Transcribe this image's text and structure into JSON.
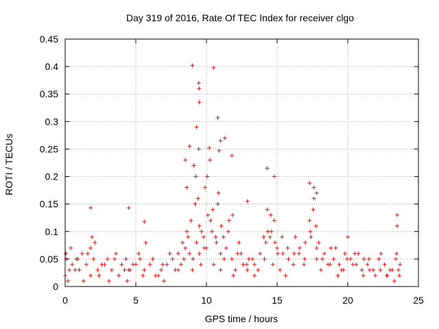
{
  "chart_data": {
    "type": "scatter",
    "title": "Day 319 of 2016, Rate Of TEC Index for receiver clgo",
    "xlabel": "GPS time / hours",
    "ylabel": "ROTI / TECUs",
    "xlim": [
      0,
      25
    ],
    "ylim": [
      0,
      0.45
    ],
    "xticks": [
      "0",
      "5",
      "10",
      "15",
      "20",
      "25"
    ],
    "yticks": [
      "0",
      "0.05",
      "0.1",
      "0.15",
      "0.2",
      "0.25",
      "0.3",
      "0.35",
      "0.4",
      "0.45"
    ],
    "grid": true,
    "marker": "+",
    "color": "#ff0000",
    "series": [
      {
        "name": "ROTI",
        "x": [
          0.0,
          0.1,
          0.3,
          0.5,
          0.8,
          1.0,
          1.2,
          1.5,
          1.8,
          2.0,
          2.3,
          2.6,
          3.0,
          3.3,
          3.6,
          4.0,
          4.3,
          4.6,
          5.0,
          5.3,
          5.6,
          6.0,
          6.4,
          6.8,
          7.2,
          7.6,
          8.0,
          8.3,
          8.6,
          8.9,
          9.2,
          9.5,
          9.8,
          10.1,
          10.4,
          10.7,
          11.0,
          11.4,
          11.8,
          12.2,
          12.6,
          13.0,
          13.4,
          13.8,
          14.2,
          14.6,
          15.0,
          15.4,
          15.8,
          16.2,
          16.6,
          17.0,
          17.4,
          17.8,
          18.2,
          18.6,
          19.0,
          19.4,
          19.8,
          20.2,
          20.6,
          21.0,
          21.4,
          21.8,
          22.2,
          22.6,
          23.0,
          23.4,
          23.7,
          0.2,
          0.7,
          1.3,
          1.8,
          1.9,
          2.4,
          3.1,
          3.8,
          4.4,
          4.5,
          5.5,
          5.7,
          6.6,
          7.0,
          8.0,
          8.4,
          8.6,
          8.8,
          9.0,
          9.1,
          9.3,
          9.4,
          9.5,
          9.6,
          9.9,
          10.0,
          10.3,
          10.5,
          10.8,
          11.0,
          11.2,
          11.6,
          11.9,
          12.3,
          12.9,
          13.4,
          14.1,
          14.3,
          14.5,
          14.7,
          14.8,
          15.2,
          15.6,
          16.3,
          16.9,
          17.3,
          17.6,
          17.8,
          18.1,
          18.8,
          19.3,
          19.7,
          20.0,
          20.5,
          21.1,
          21.5,
          22.3,
          22.8,
          23.3,
          23.5,
          23.6,
          0.05,
          0.4,
          0.9,
          1.6,
          2.1,
          2.8,
          3.5,
          4.2,
          4.8,
          5.2,
          6.2,
          6.9,
          7.4,
          7.8,
          8.2,
          8.5,
          8.7,
          9.05,
          9.25,
          9.45,
          9.65,
          9.85,
          10.05,
          10.25,
          10.45,
          10.65,
          10.85,
          11.05,
          11.25,
          11.55,
          11.85,
          12.05,
          12.45,
          12.85,
          13.25,
          13.65,
          14.05,
          14.35,
          14.55,
          14.85,
          15.05,
          15.35,
          15.75,
          16.15,
          16.55,
          16.95,
          17.35,
          17.55,
          17.75,
          17.95,
          18.35,
          18.75,
          19.15,
          19.55,
          19.95,
          20.35,
          20.75,
          21.15,
          21.55,
          21.95,
          22.35,
          22.75,
          23.15,
          23.45,
          23.65,
          9.0,
          9.45,
          9.48,
          9.5,
          10.5,
          10.8,
          11.3,
          9.3,
          10.2,
          11.0,
          8.5,
          14.3,
          14.8,
          17.3,
          17.6,
          17.8,
          1.8,
          4.5,
          23.5,
          5.6,
          12.9,
          8.8,
          10.9,
          11.8
        ],
        "y": [
          0.02,
          0.05,
          0.03,
          0.04,
          0.05,
          0.03,
          0.06,
          0.04,
          0.07,
          0.05,
          0.03,
          0.04,
          0.05,
          0.03,
          0.06,
          0.04,
          0.05,
          0.03,
          0.04,
          0.05,
          0.03,
          0.04,
          0.02,
          0.03,
          0.04,
          0.05,
          0.06,
          0.08,
          0.1,
          0.12,
          0.15,
          0.11,
          0.09,
          0.13,
          0.1,
          0.08,
          0.06,
          0.07,
          0.05,
          0.06,
          0.04,
          0.05,
          0.04,
          0.06,
          0.08,
          0.1,
          0.07,
          0.06,
          0.05,
          0.06,
          0.07,
          0.08,
          0.09,
          0.07,
          0.05,
          0.04,
          0.05,
          0.04,
          0.06,
          0.05,
          0.04,
          0.03,
          0.04,
          0.03,
          0.05,
          0.04,
          0.03,
          0.05,
          0.04,
          0.01,
          0.03,
          0.01,
          0.02,
          0.09,
          0.02,
          0.01,
          0.02,
          0.01,
          0.03,
          0.02,
          0.08,
          0.02,
          0.01,
          0.03,
          0.05,
          0.18,
          0.06,
          0.03,
          0.22,
          0.08,
          0.16,
          0.06,
          0.04,
          0.18,
          0.07,
          0.12,
          0.04,
          0.15,
          0.03,
          0.09,
          0.12,
          0.02,
          0.08,
          0.03,
          0.02,
          0.05,
          0.14,
          0.09,
          0.04,
          0.12,
          0.03,
          0.02,
          0.09,
          0.04,
          0.12,
          0.16,
          0.05,
          0.03,
          0.07,
          0.02,
          0.03,
          0.09,
          0.06,
          0.02,
          0.05,
          0.03,
          0.02,
          0.01,
          0.11,
          0.03,
          0.06,
          0.07,
          0.05,
          0.06,
          0.08,
          0.04,
          0.05,
          0.03,
          0.04,
          0.06,
          0.05,
          0.04,
          0.06,
          0.03,
          0.04,
          0.07,
          0.09,
          0.05,
          0.2,
          0.25,
          0.1,
          0.07,
          0.2,
          0.23,
          0.14,
          0.09,
          0.17,
          0.11,
          0.05,
          0.1,
          0.13,
          0.03,
          0.06,
          0.04,
          0.05,
          0.03,
          0.09,
          0.1,
          0.13,
          0.08,
          0.06,
          0.09,
          0.07,
          0.04,
          0.06,
          0.05,
          0.1,
          0.14,
          0.11,
          0.08,
          0.06,
          0.04,
          0.07,
          0.03,
          0.05,
          0.04,
          0.06,
          0.05,
          0.03,
          0.02,
          0.06,
          0.02,
          0.03,
          0.06,
          0.02,
          0.402,
          0.37,
          0.36,
          0.335,
          0.398,
          0.307,
          0.27,
          0.29,
          0.252,
          0.265,
          0.23,
          0.215,
          0.2,
          0.188,
          0.18,
          0.17,
          0.143,
          0.143,
          0.13,
          0.118,
          0.155,
          0.255,
          0.247,
          0.238
        ]
      }
    ]
  }
}
